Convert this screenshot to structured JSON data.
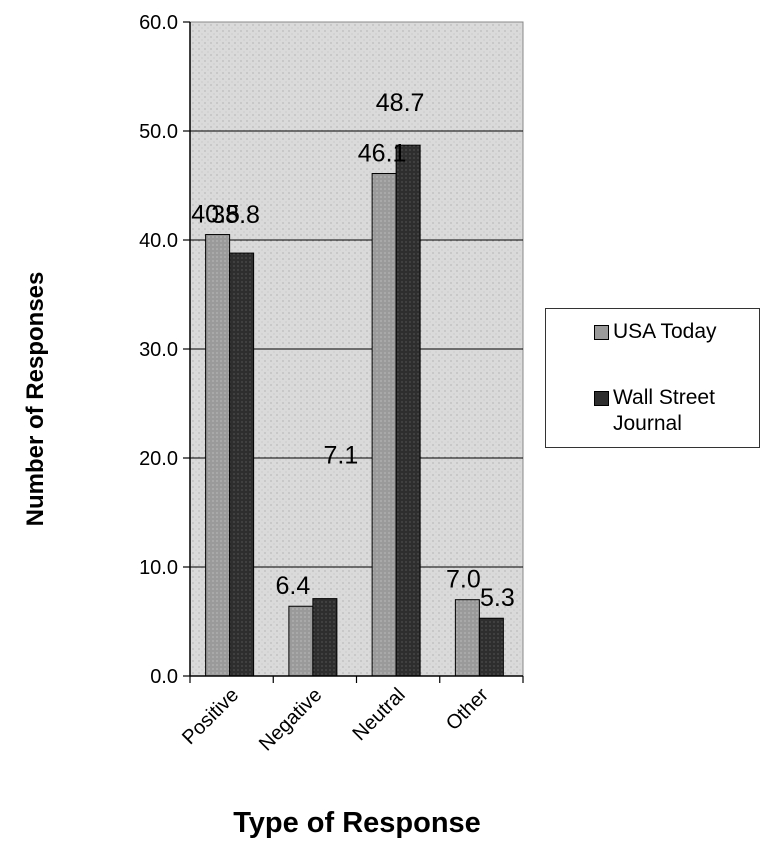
{
  "chart_data": {
    "type": "bar",
    "categories": [
      "Positive",
      "Negative",
      "Neutral",
      "Other"
    ],
    "series": [
      {
        "name": "USA Today",
        "values": [
          40.5,
          6.4,
          46.1,
          7.0
        ],
        "labels": [
          "40.5",
          "6.4",
          "46.1",
          "7.0"
        ],
        "color": "#9a9a9a"
      },
      {
        "name": "Wall Street Journal",
        "values": [
          38.8,
          7.1,
          48.7,
          5.3
        ],
        "labels": [
          "38.8",
          "7.1",
          "48.7",
          "5.3"
        ],
        "color": "#2e2e2e"
      }
    ],
    "xlabel": "Type of Response",
    "ylabel": "Number of Responses",
    "ylim": [
      0,
      60
    ],
    "yticks": [
      "0.0",
      "10.0",
      "20.0",
      "30.0",
      "40.0",
      "50.0",
      "60.0"
    ],
    "grid": true,
    "legend_position": "right",
    "plot_background": "#d6d6d6"
  }
}
